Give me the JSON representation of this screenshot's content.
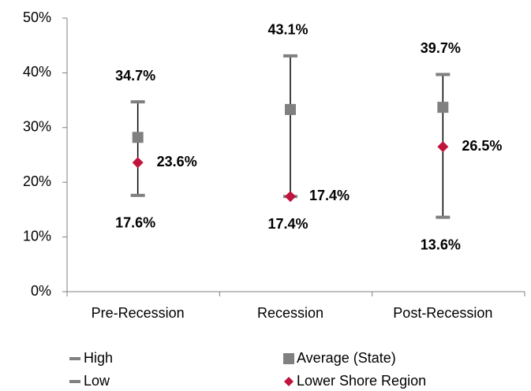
{
  "chart_data": {
    "type": "high-low",
    "categories": [
      "Pre-Recession",
      "Recession",
      "Post-Recession"
    ],
    "series": [
      {
        "name": "High",
        "color": "#808080",
        "marker": "dash",
        "label_position": "above",
        "values": [
          34.7,
          43.1,
          39.7
        ],
        "value_labels": [
          "34.7%",
          "43.1%",
          "39.7%"
        ]
      },
      {
        "name": "Low",
        "color": "#808080",
        "marker": "dash",
        "label_position": "below",
        "values": [
          17.6,
          17.4,
          13.6
        ],
        "value_labels": [
          "17.6%",
          "17.4%",
          "13.6%"
        ]
      },
      {
        "name": "Average (State)",
        "color": "#808080",
        "marker": "square",
        "values": [
          28.2,
          33.3,
          33.7
        ]
      },
      {
        "name": "Lower Shore Region",
        "color": "#c0143c",
        "marker": "diamond",
        "label_position": "right",
        "values": [
          23.6,
          17.4,
          26.5
        ],
        "value_labels": [
          "23.6%",
          "17.4%",
          "26.5%"
        ]
      }
    ],
    "ylim": [
      0,
      50
    ],
    "yticks": [
      {
        "value": 0,
        "label": "0%"
      },
      {
        "value": 10,
        "label": "10%"
      },
      {
        "value": 20,
        "label": "20%"
      },
      {
        "value": 30,
        "label": "30%"
      },
      {
        "value": 40,
        "label": "40%"
      },
      {
        "value": 50,
        "label": "50%"
      }
    ],
    "grid": false
  }
}
